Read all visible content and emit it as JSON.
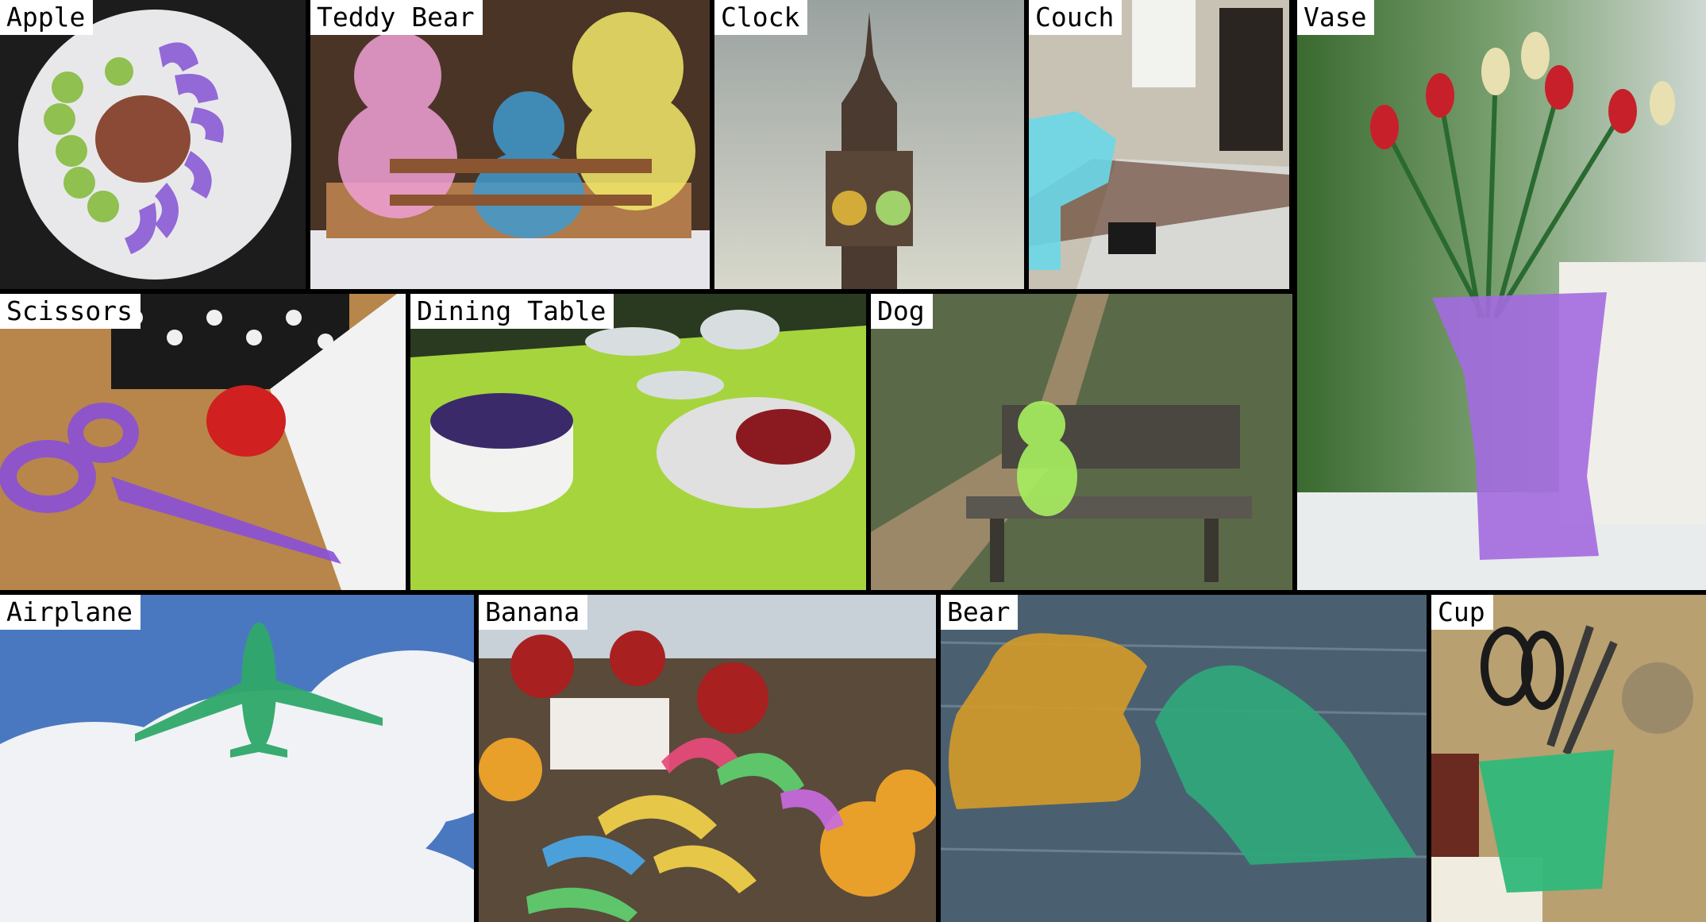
{
  "tiles": {
    "apple": {
      "label": "Apple",
      "mask_color": "#8a5bd6"
    },
    "teddy_bear": {
      "label": "Teddy Bear",
      "mask_colors": [
        "#f0a0d6",
        "#3f9ad0",
        "#f2ea6a"
      ]
    },
    "clock": {
      "label": "Clock",
      "mask_colors": [
        "#e0b63a",
        "#a8e070"
      ]
    },
    "couch": {
      "label": "Couch",
      "mask_color": "#6ad8e8"
    },
    "vase": {
      "label": "Vase",
      "mask_color": "#a36ae0"
    },
    "scissors": {
      "label": "Scissors",
      "mask_color": "#8a50d8"
    },
    "dining_table": {
      "label": "Dining Table",
      "mask_color": "#b4e640"
    },
    "dog": {
      "label": "Dog",
      "mask_color": "#a8f060"
    },
    "airplane": {
      "label": "Airplane",
      "mask_color": "#2fa86a"
    },
    "banana": {
      "label": "Banana",
      "mask_colors": [
        "#e84a7a",
        "#f2d24a",
        "#5fd070",
        "#4aa8e8",
        "#c86ae0"
      ]
    },
    "bear": {
      "label": "Bear",
      "mask_colors": [
        "#d09a2a",
        "#2fa87a"
      ]
    },
    "cup": {
      "label": "Cup",
      "mask_color": "#30b87a"
    }
  }
}
